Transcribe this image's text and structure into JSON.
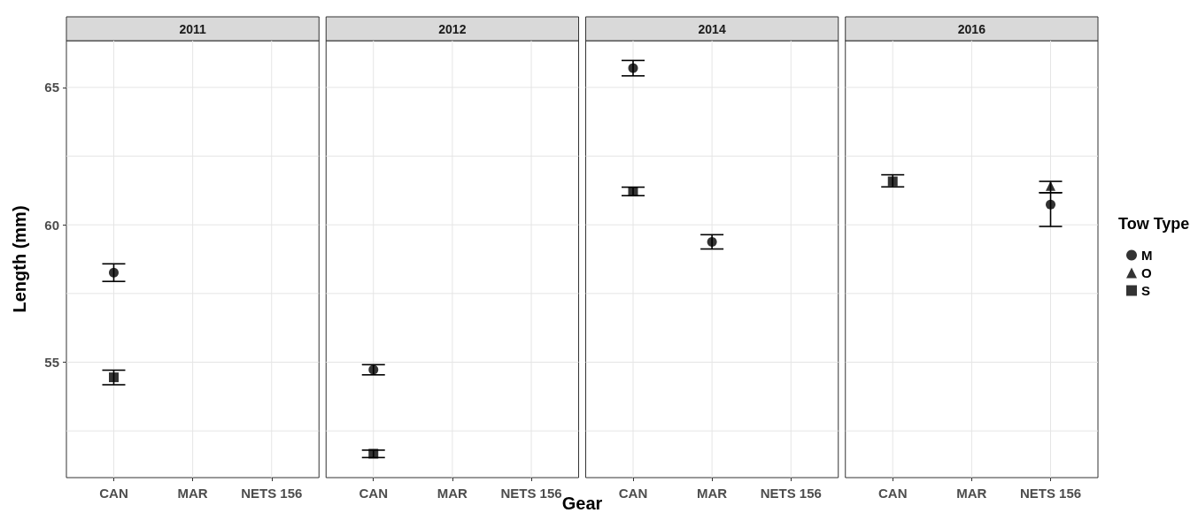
{
  "chart_data": [
    {
      "type": "scatter",
      "title": "2011",
      "ylabel": "Length (mm)",
      "categories": [
        "CAN",
        "MAR",
        "NETS 156"
      ],
      "ylim": [
        50.8,
        66.7
      ],
      "yticks": [
        {
          "value": 52.5,
          "label": null
        },
        55,
        {
          "value": 57.5,
          "label": null
        },
        60,
        {
          "value": 62.5,
          "label": null
        },
        65
      ],
      "grid": true,
      "series": [
        {
          "marker": "circle",
          "color": "#000000",
          "values": [
            58.26,
            null,
            null
          ],
          "errors": [
            [
              57.94,
              58.58
            ],
            null,
            null
          ]
        },
        {
          "marker": "square",
          "color": "#000000",
          "values": [
            54.45,
            null,
            null
          ],
          "errors": [
            [
              54.18,
              54.71
            ],
            null,
            null
          ]
        }
      ]
    },
    {
      "type": "scatter",
      "title": "2012",
      "xlabel": "Gear",
      "categories": [
        "CAN",
        "MAR",
        "NETS 156"
      ],
      "ylim": [
        50.8,
        66.7
      ],
      "yticks": [
        {
          "value": 52.5,
          "label": null
        },
        55,
        {
          "value": 57.5,
          "label": null
        },
        60,
        {
          "value": 62.5,
          "label": null
        },
        65
      ],
      "grid": true,
      "tick_labels": "x",
      "series": [
        {
          "marker": "circle",
          "color": "#000000",
          "values": [
            54.73,
            null,
            null
          ],
          "errors": [
            [
              54.54,
              54.91
            ],
            null,
            null
          ]
        },
        {
          "marker": "square",
          "color": "#000000",
          "values": [
            51.67,
            null,
            null
          ],
          "errors": [
            [
              51.53,
              51.8
            ],
            null,
            null
          ]
        }
      ]
    },
    {
      "type": "scatter",
      "title": "2014",
      "categories": [
        "CAN",
        "MAR",
        "NETS 156"
      ],
      "ylim": [
        50.8,
        66.7
      ],
      "yticks": [
        {
          "value": 52.5,
          "label": null
        },
        55,
        {
          "value": 57.5,
          "label": null
        },
        60,
        {
          "value": 62.5,
          "label": null
        },
        65
      ],
      "grid": true,
      "tick_labels": "x",
      "series": [
        {
          "marker": "circle",
          "color": "#000000",
          "values": [
            65.7,
            59.38,
            null
          ],
          "errors": [
            [
              65.42,
              65.98
            ],
            [
              59.12,
              59.64
            ],
            null
          ]
        },
        {
          "marker": "square",
          "color": "#000000",
          "values": [
            61.21,
            null,
            null
          ],
          "errors": [
            [
              61.06,
              61.37
            ],
            null,
            null
          ]
        }
      ]
    },
    {
      "type": "scatter",
      "title": "2016",
      "categories": [
        "CAN",
        "MAR",
        "NETS 156"
      ],
      "ylim": [
        50.8,
        66.7
      ],
      "yticks": [
        {
          "value": 52.5,
          "label": null
        },
        55,
        {
          "value": 57.5,
          "label": null
        },
        60,
        {
          "value": 62.5,
          "label": null
        },
        65
      ],
      "grid": true,
      "tick_labels": "x",
      "legend": "right",
      "legend_title": "Tow Type",
      "series": [
        {
          "name": "M",
          "marker": "circle",
          "color": "#000000",
          "values": [
            null,
            null,
            60.74
          ],
          "errors": [
            null,
            null,
            [
              59.94,
              61.17
            ]
          ]
        },
        {
          "name": "O",
          "marker": "triangle",
          "color": "#000000",
          "values": [
            null,
            null,
            61.41
          ],
          "errors": [
            null,
            null,
            [
              61.17,
              61.58
            ]
          ]
        },
        {
          "name": "S",
          "marker": "square",
          "color": "#000000",
          "values": [
            61.58,
            null,
            null
          ],
          "errors": [
            [
              61.38,
              61.82
            ],
            null,
            null
          ]
        }
      ]
    }
  ]
}
